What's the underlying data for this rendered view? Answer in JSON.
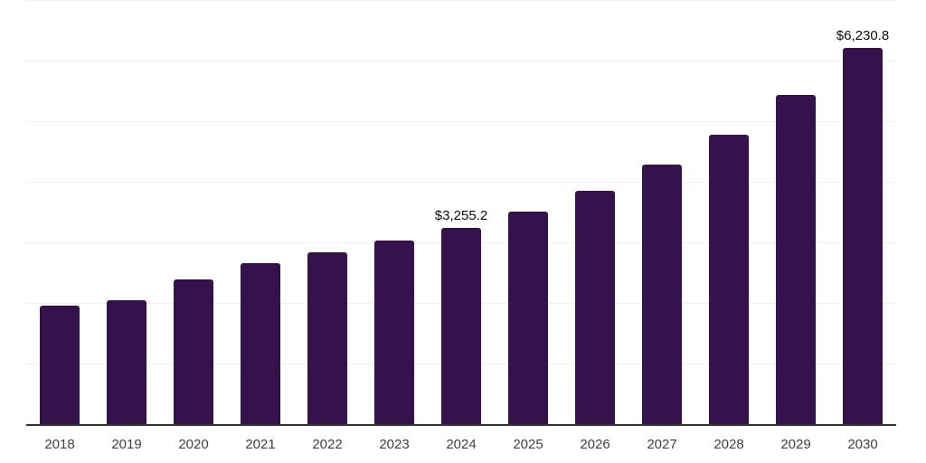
{
  "chart_data": {
    "type": "bar",
    "title": "",
    "xlabel": "",
    "ylabel": "",
    "categories": [
      "2018",
      "2019",
      "2020",
      "2021",
      "2022",
      "2023",
      "2024",
      "2025",
      "2026",
      "2027",
      "2028",
      "2029",
      "2030"
    ],
    "values": [
      1965,
      2055,
      2400,
      2675,
      2850,
      3045,
      3255.2,
      3525,
      3865,
      4295,
      4785,
      5450,
      6230.8
    ],
    "labeled_points": [
      {
        "category": "2024",
        "label": "$3,255.2"
      },
      {
        "category": "2030",
        "label": "$6,230.8"
      }
    ],
    "value_prefix": "$",
    "ylim": [
      0,
      7000
    ],
    "gridline_interval": 1000,
    "grid": "horizontal",
    "y_axis_labels_visible": false,
    "legend": "none"
  },
  "colors": {
    "bar": "#35124B",
    "axis": "#333333",
    "gridline": "#F0F0F2",
    "tick_label": "#3F3F3F",
    "value_label": "#0D0D0D",
    "background": "#FFFFFF"
  }
}
